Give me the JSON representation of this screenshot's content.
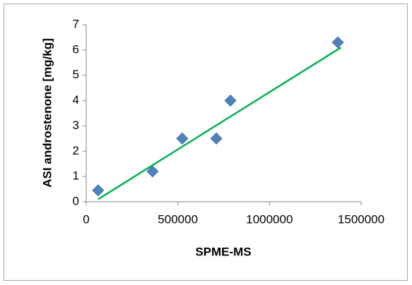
{
  "chart_data": {
    "type": "scatter",
    "x_label": "SPME-MS",
    "y_label": "ASI androstenone [mg/kg]",
    "series": [
      {
        "color": "#4f81bd",
        "x": [
          65000,
          362000,
          524000,
          710000,
          787000,
          1373000
        ],
        "values": [
          0.45,
          1.2,
          2.5,
          2.5,
          4.0,
          6.3
        ]
      }
    ],
    "trendline": {
      "color": "#00b050",
      "x": [
        65000,
        1390000
      ],
      "y": [
        0.1,
        6.1
      ]
    },
    "xlim": [
      0,
      1500000
    ],
    "xticks": [
      0,
      500000,
      1000000,
      1500000
    ],
    "ylim": [
      0,
      7
    ],
    "yticks": [
      0,
      1,
      2,
      3,
      4,
      5,
      6,
      7
    ],
    "grid": false
  }
}
